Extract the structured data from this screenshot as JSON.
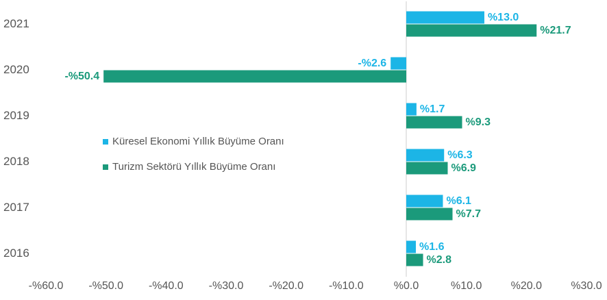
{
  "chart_data": {
    "type": "bar",
    "orientation": "horizontal",
    "categories": [
      "2021",
      "2020",
      "2019",
      "2018",
      "2017",
      "2016"
    ],
    "series": [
      {
        "name": "Küresel Ekonomi Yıllık Büyüme Oranı",
        "color": "#1cb5e6",
        "values": [
          13.0,
          -2.6,
          1.7,
          6.3,
          6.1,
          1.6
        ],
        "value_labels": [
          "%13.0",
          "-%2.6",
          "%1.7",
          "%6.3",
          "%6.1",
          "%1.6"
        ]
      },
      {
        "name": "Turizm Sektörü Yıllık Büyüme Oranı",
        "color": "#1b9a7b",
        "values": [
          21.7,
          -50.4,
          9.3,
          6.9,
          7.7,
          2.8
        ],
        "value_labels": [
          "%21.7",
          "-%50.4",
          "%9.3",
          "%6.9",
          "%7.7",
          "%2.8"
        ]
      }
    ],
    "xlim": [
      -60,
      30
    ],
    "xticks": [
      {
        "value": -60,
        "label": "-%60.0"
      },
      {
        "value": -50,
        "label": "-%50.0"
      },
      {
        "value": -40,
        "label": "-%40.0"
      },
      {
        "value": -30,
        "label": "-%30.0"
      },
      {
        "value": -20,
        "label": "-%20.0"
      },
      {
        "value": -10,
        "label": "-%10.0"
      },
      {
        "value": 0,
        "label": "%0.0"
      },
      {
        "value": 10,
        "label": "%10.0"
      },
      {
        "value": 20,
        "label": "%20.0"
      },
      {
        "value": 30,
        "label": "%30.0"
      }
    ],
    "grid": false
  }
}
